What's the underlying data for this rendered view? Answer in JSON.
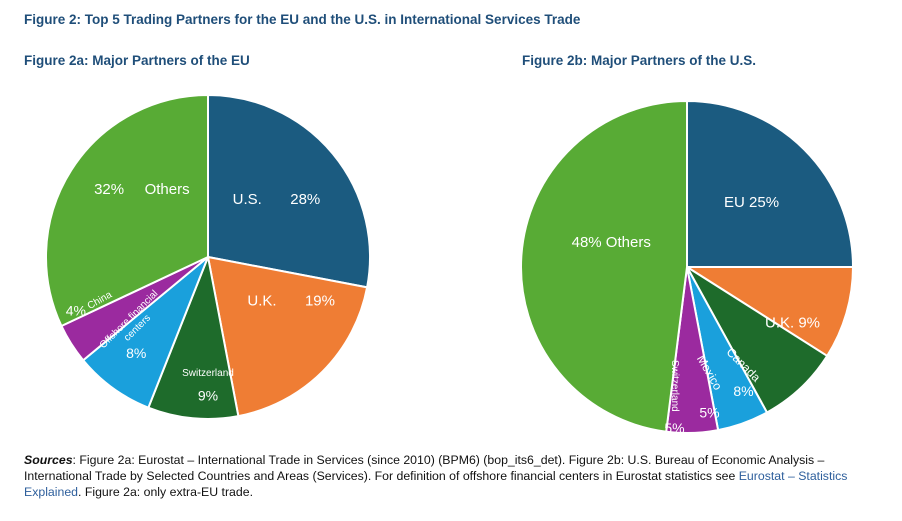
{
  "title": "Figure 2: Top 5 Trading Partners for the EU and the U.S. in International Services Trade",
  "chart_data": [
    {
      "type": "pie",
      "title": "Figure 2a: Major Partners of the EU",
      "slices": [
        {
          "label": "U.S.",
          "value": 28,
          "value_label": "28%",
          "color": "#1b5b80"
        },
        {
          "label": "U.K.",
          "value": 19,
          "value_label": "19%",
          "color": "#ef7d34"
        },
        {
          "label": "Switzerland",
          "value": 9,
          "value_label": "9%",
          "color": "#1e6b2b"
        },
        {
          "label": "Offshore financial centers",
          "value": 8,
          "value_label": "8%",
          "color": "#1aa0dc"
        },
        {
          "label": "China",
          "value": 4,
          "value_label": "4%",
          "color": "#9b2a9f"
        },
        {
          "label": "Others",
          "value": 32,
          "value_label": "32%",
          "color": "#58ab35"
        }
      ]
    },
    {
      "type": "pie",
      "title": "Figure 2b: Major Partners of the U.S.",
      "slices": [
        {
          "label": "EU",
          "value": 25,
          "value_label": "25%",
          "color": "#1b5b80"
        },
        {
          "label": "U.K.",
          "value": 9,
          "value_label": "9%",
          "color": "#ef7d34"
        },
        {
          "label": "Canada",
          "value": 8,
          "value_label": "8%",
          "color": "#1e6b2b"
        },
        {
          "label": "Mexico",
          "value": 5,
          "value_label": "5%",
          "color": "#1aa0dc"
        },
        {
          "label": "Switzerland",
          "value": 5,
          "value_label": "5%",
          "color": "#9b2a9f"
        },
        {
          "label": "Others",
          "value": 48,
          "value_label": "48%",
          "color": "#58ab35"
        }
      ]
    }
  ],
  "sources": {
    "label": "Sources",
    "text_1": ": Figure 2a: Eurostat – International Trade in Services (since 2010) (BPM6) (bop_its6_det). Figure 2b: U.S. Bureau of Economic Analysis – International Trade by Selected Countries and Areas (Services). For definition of offshore financial centers in Eurostat statistics see ",
    "link": "Eurostat – Statistics Explained",
    "text_2": ". Figure 2a: only extra-EU trade."
  }
}
